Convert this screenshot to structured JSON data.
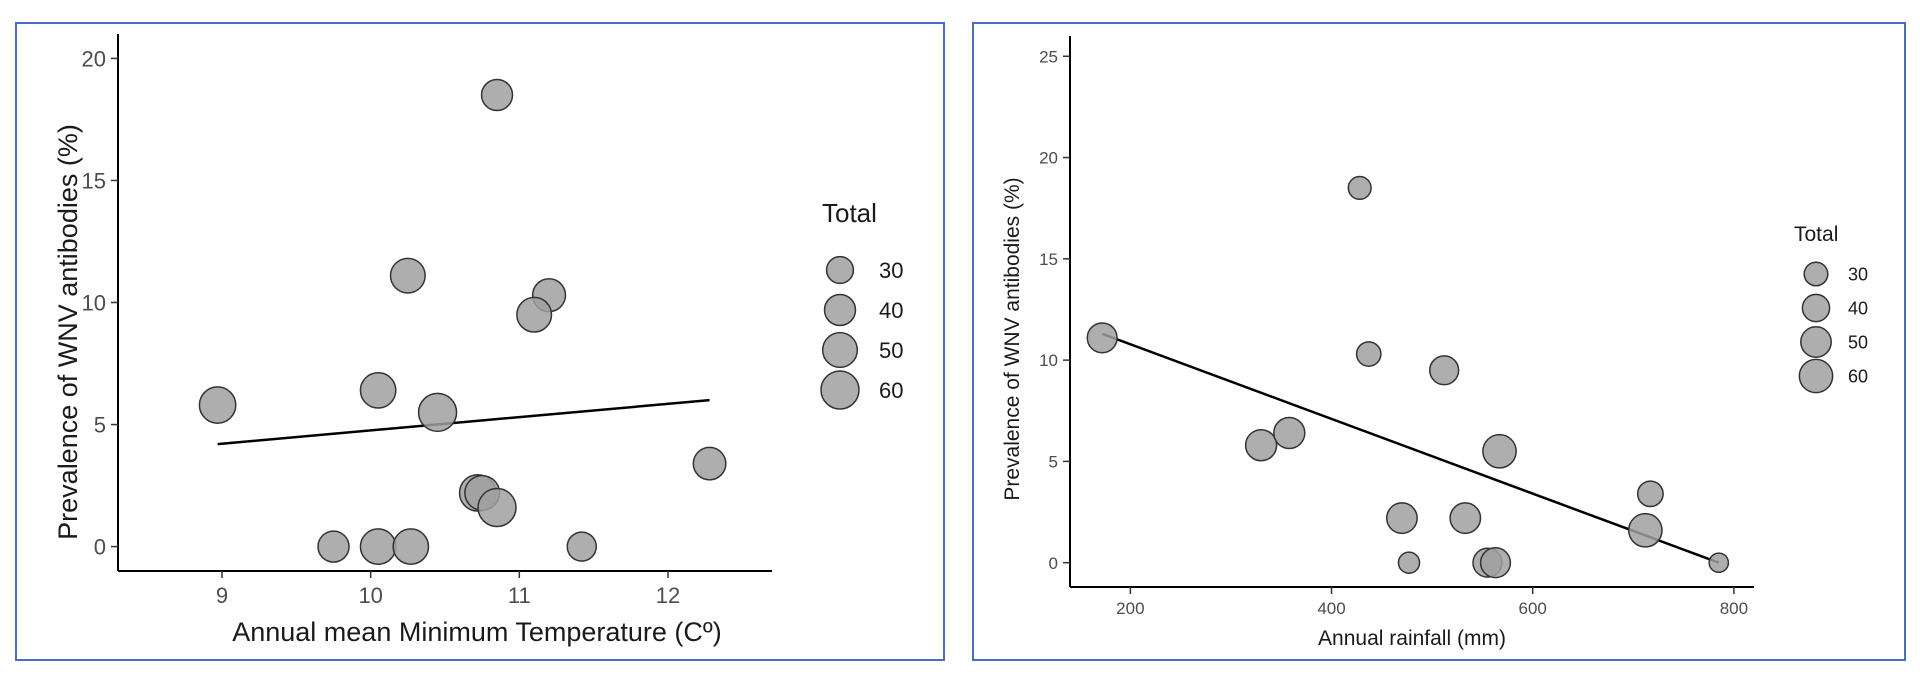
{
  "chart_data": [
    {
      "type": "scatter",
      "xlabel": "Annual mean Minimum Temperature (Cº)",
      "ylabel": "Prevalence of WNV antibodies (%)",
      "xlim": [
        8.3,
        12.7
      ],
      "ylim": [
        -1,
        21
      ],
      "xticks": [
        9,
        10,
        11,
        12
      ],
      "yticks": [
        0,
        5,
        10,
        15,
        20
      ],
      "grid": false,
      "legend": {
        "title": "Total",
        "position": "right",
        "sizes": [
          30,
          40,
          50,
          60
        ],
        "labels": [
          "30",
          "40",
          "50",
          "60"
        ]
      },
      "point_color": "#a0a0a0",
      "point_stroke": "#333333",
      "points": [
        {
          "x": 10.85,
          "y": 18.5,
          "total": 40
        },
        {
          "x": 10.25,
          "y": 11.1,
          "total": 50
        },
        {
          "x": 11.2,
          "y": 10.3,
          "total": 45
        },
        {
          "x": 11.1,
          "y": 9.5,
          "total": 50
        },
        {
          "x": 8.97,
          "y": 5.8,
          "total": 55
        },
        {
          "x": 10.05,
          "y": 6.4,
          "total": 52
        },
        {
          "x": 10.45,
          "y": 5.5,
          "total": 60
        },
        {
          "x": 12.28,
          "y": 3.4,
          "total": 44
        },
        {
          "x": 10.72,
          "y": 2.2,
          "total": 55
        },
        {
          "x": 10.75,
          "y": 2.2,
          "total": 50
        },
        {
          "x": 10.85,
          "y": 1.6,
          "total": 60
        },
        {
          "x": 9.75,
          "y": 0.0,
          "total": 40
        },
        {
          "x": 10.05,
          "y": 0.0,
          "total": 52
        },
        {
          "x": 10.27,
          "y": 0.0,
          "total": 52
        },
        {
          "x": 11.42,
          "y": 0.0,
          "total": 35
        }
      ],
      "trend_line": {
        "x": [
          8.97,
          12.28
        ],
        "y": [
          4.2,
          6.0
        ]
      }
    },
    {
      "type": "scatter",
      "xlabel": "Annual rainfall (mm)",
      "ylabel": "Prevalence of WNV antibodies (%)",
      "xlim": [
        140,
        820
      ],
      "ylim": [
        -1.2,
        26
      ],
      "xticks": [
        200,
        400,
        600,
        800
      ],
      "yticks": [
        0,
        5,
        10,
        15,
        20,
        25
      ],
      "grid": false,
      "legend": {
        "title": "Total",
        "position": "right",
        "sizes": [
          30,
          40,
          50,
          60
        ],
        "labels": [
          "30",
          "40",
          "50",
          "60"
        ]
      },
      "point_color": "#a0a0a0",
      "point_stroke": "#333333",
      "points": [
        {
          "x": 428,
          "y": 18.5,
          "total": 28
        },
        {
          "x": 172,
          "y": 11.1,
          "total": 48
        },
        {
          "x": 437,
          "y": 10.3,
          "total": 32
        },
        {
          "x": 512,
          "y": 9.5,
          "total": 45
        },
        {
          "x": 330,
          "y": 5.8,
          "total": 52
        },
        {
          "x": 358,
          "y": 6.4,
          "total": 52
        },
        {
          "x": 567,
          "y": 5.5,
          "total": 60
        },
        {
          "x": 717,
          "y": 3.4,
          "total": 35
        },
        {
          "x": 470,
          "y": 2.2,
          "total": 50
        },
        {
          "x": 533,
          "y": 2.2,
          "total": 50
        },
        {
          "x": 712,
          "y": 1.6,
          "total": 60
        },
        {
          "x": 477,
          "y": 0.0,
          "total": 24
        },
        {
          "x": 555,
          "y": 0.0,
          "total": 45
        },
        {
          "x": 563,
          "y": 0.0,
          "total": 48
        },
        {
          "x": 785,
          "y": 0.0,
          "total": 20
        }
      ],
      "trend_line": {
        "x": [
          172,
          785
        ],
        "y": [
          11.3,
          0.0
        ]
      }
    }
  ]
}
